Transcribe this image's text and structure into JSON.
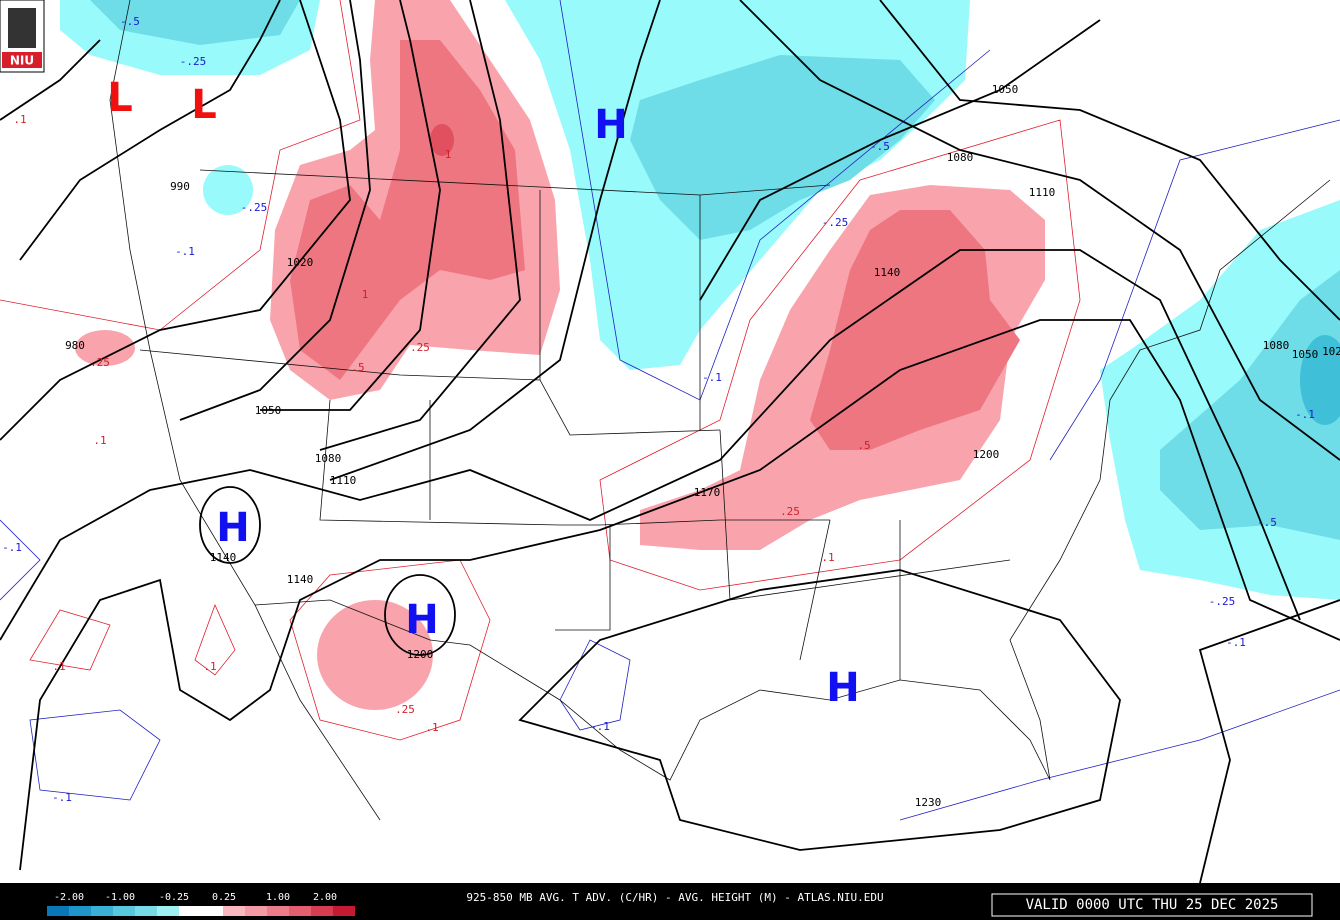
{
  "logo": {
    "text": "NIU"
  },
  "footer": {
    "title": "925-850 MB AVG. T ADV. (C/HR) - AVG. HEIGHT (M) - ATLAS.NIU.EDU",
    "valid": "VALID 0000 UTC THU 25 DEC 2025"
  },
  "legend": {
    "labels": [
      "-2.00",
      "-1.00",
      "-0.25",
      "0.25",
      "1.00",
      "2.00"
    ]
  },
  "lows": [
    "L",
    "L"
  ],
  "highs": [
    "H",
    "H",
    "H",
    "H"
  ],
  "height_labels": [
    "1050",
    "1080",
    "1110",
    "1140",
    "990",
    "1020",
    "980",
    "1050",
    "1080",
    "1110",
    "1170",
    "1200",
    "1140",
    "1140",
    "1200",
    "1230",
    "1080",
    "1050",
    "102"
  ],
  "warm_labels": [
    ".1",
    ".25",
    ".1",
    ".5",
    ".25",
    "1",
    "1",
    ".5",
    ".25",
    ".1",
    ".1",
    ".1",
    ".25",
    ".1"
  ],
  "cold_labels": [
    "-.5",
    "-.25",
    "-.25",
    "-.1",
    "-.5",
    "-.25",
    "-.1",
    "-.1",
    "-.1",
    "-.1",
    "-.25",
    "-.1",
    "-.5",
    "-.1"
  ]
}
